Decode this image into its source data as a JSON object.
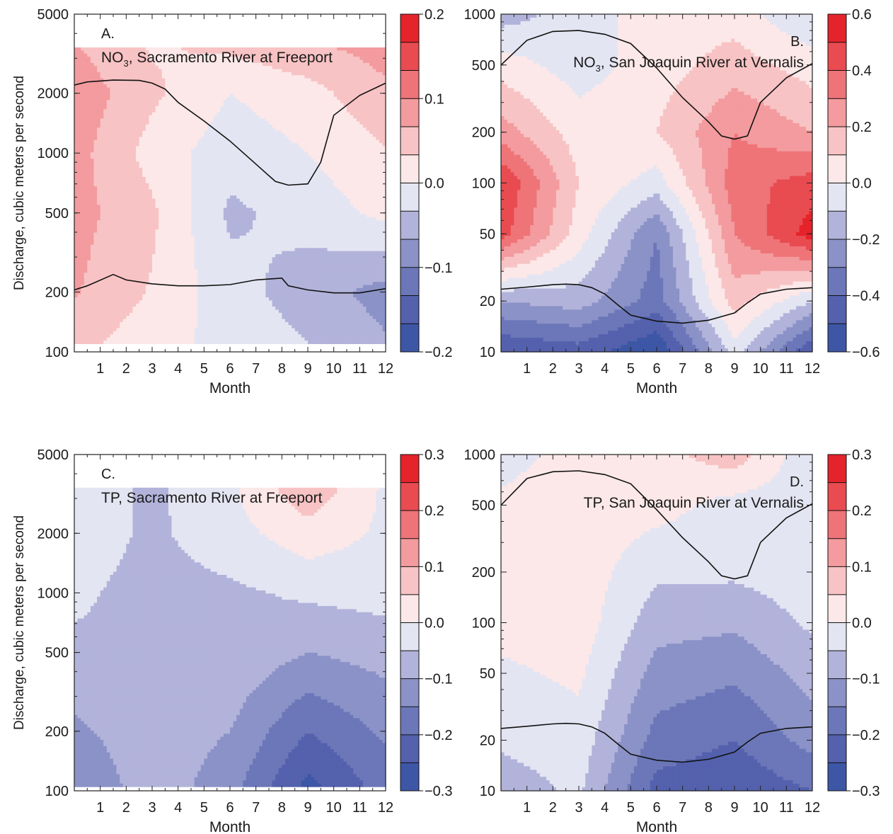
{
  "chart_data": [
    {
      "type": "heatmap",
      "panel_letter": "A.",
      "title_chem": "NO",
      "title_sub": "3",
      "title_rest": ", Sacramento River at Freeport",
      "xlabel": "Month",
      "ylabel": "Discharge, cubic meters per second",
      "y_scale": "log",
      "xlim": [
        0,
        12
      ],
      "ylim": [
        100,
        5000
      ],
      "x_ticks": [
        "1",
        "2",
        "3",
        "4",
        "5",
        "6",
        "7",
        "8",
        "9",
        "10",
        "11",
        "12"
      ],
      "y_ticks": [
        {
          "value": 100,
          "label": "100"
        },
        {
          "value": 200,
          "label": "200"
        },
        {
          "value": 500,
          "label": "500"
        },
        {
          "value": 1000,
          "label": "1000"
        },
        {
          "value": 2000,
          "label": "2000"
        },
        {
          "value": 5000,
          "label": "5000"
        }
      ],
      "colorbar": {
        "range": [
          -0.2,
          0.2
        ],
        "levels": 12,
        "labels": [
          {
            "value": 0.2,
            "label": "0.2"
          },
          {
            "value": 0.1,
            "label": "0.1"
          },
          {
            "value": 0.0,
            "label": "0.0"
          },
          {
            "value": -0.1,
            "label": "−0.1"
          },
          {
            "value": -0.2,
            "label": "−0.2"
          }
        ]
      },
      "data_extent": {
        "y_top": 3400,
        "y_bottom": 110
      },
      "control_points": {
        "x": [
          0,
          3,
          6,
          9,
          12
        ],
        "y": [
          100,
          200,
          500,
          1000,
          2000,
          3400
        ],
        "z": [
          [
            0.04,
            0.01,
            -0.01,
            -0.03,
            -0.06
          ],
          [
            0.07,
            0.03,
            -0.02,
            -0.05,
            -0.08
          ],
          [
            0.08,
            0.04,
            -0.04,
            -0.02,
            0.01
          ],
          [
            0.08,
            0.02,
            -0.02,
            0.0,
            0.03
          ],
          [
            0.09,
            0.04,
            0.0,
            0.02,
            0.06
          ],
          [
            0.07,
            0.03,
            0.04,
            0.06,
            0.08
          ]
        ]
      },
      "lines": [
        {
          "x": [
            0,
            0.5,
            1.5,
            2.5,
            3,
            3.5,
            4,
            5,
            6,
            7,
            7.75,
            8.25,
            9,
            9.5,
            10,
            11,
            12
          ],
          "y": [
            2200,
            2280,
            2330,
            2320,
            2250,
            2100,
            1800,
            1450,
            1150,
            880,
            720,
            690,
            700,
            900,
            1550,
            1950,
            2250
          ]
        },
        {
          "x": [
            0,
            0.5,
            1.5,
            2,
            3,
            4,
            5,
            6,
            7,
            8,
            8.25,
            9,
            10,
            11,
            12
          ],
          "y": [
            205,
            215,
            245,
            230,
            220,
            215,
            215,
            218,
            230,
            235,
            215,
            205,
            198,
            198,
            208
          ]
        }
      ]
    },
    {
      "type": "heatmap",
      "panel_letter": "B.",
      "title_chem": "NO",
      "title_sub": "3",
      "title_rest": ", San Joaquin River at Vernalis",
      "xlabel": "Month",
      "ylabel": "",
      "y_scale": "log",
      "xlim": [
        0,
        12
      ],
      "ylim": [
        10,
        1000
      ],
      "x_ticks": [
        "1",
        "2",
        "3",
        "4",
        "5",
        "6",
        "7",
        "8",
        "9",
        "10",
        "11",
        "12"
      ],
      "y_ticks": [
        {
          "value": 10,
          "label": "10"
        },
        {
          "value": 20,
          "label": "20"
        },
        {
          "value": 50,
          "label": "50"
        },
        {
          "value": 100,
          "label": "100"
        },
        {
          "value": 200,
          "label": "200"
        },
        {
          "value": 500,
          "label": "500"
        },
        {
          "value": 1000,
          "label": "1000"
        }
      ],
      "colorbar": {
        "range": [
          -0.6,
          0.6
        ],
        "levels": 12,
        "labels": [
          {
            "value": 0.6,
            "label": "0.6"
          },
          {
            "value": 0.4,
            "label": "0.4"
          },
          {
            "value": 0.2,
            "label": "0.2"
          },
          {
            "value": 0.0,
            "label": "0.0"
          },
          {
            "value": -0.2,
            "label": "−0.2"
          },
          {
            "value": -0.4,
            "label": "−0.4"
          },
          {
            "value": -0.6,
            "label": "−0.6"
          }
        ]
      },
      "data_extent": {
        "y_top": 1000,
        "y_bottom": 10
      },
      "control_points": {
        "x": [
          0,
          3,
          6,
          9,
          12
        ],
        "y": [
          10,
          20,
          50,
          100,
          200,
          500,
          1000
        ],
        "z": [
          [
            -0.5,
            -0.45,
            -0.6,
            -0.05,
            -0.5
          ],
          [
            -0.2,
            -0.15,
            -0.35,
            0.15,
            -0.1
          ],
          [
            0.45,
            0.05,
            -0.3,
            0.3,
            0.55
          ],
          [
            0.5,
            0.1,
            -0.05,
            0.35,
            0.45
          ],
          [
            0.25,
            0.05,
            0.1,
            0.3,
            0.2
          ],
          [
            0.05,
            -0.05,
            0.05,
            0.15,
            0.05
          ],
          [
            -0.15,
            -0.05,
            0.05,
            0.05,
            -0.1
          ]
        ]
      },
      "lines": [
        {
          "x": [
            0,
            1,
            2,
            3,
            4,
            5,
            6,
            7,
            8,
            8.5,
            9,
            9.5,
            10,
            11,
            12
          ],
          "y": [
            500,
            700,
            790,
            800,
            760,
            670,
            480,
            320,
            230,
            190,
            182,
            190,
            300,
            420,
            510
          ]
        },
        {
          "x": [
            0,
            1,
            2,
            2.5,
            3,
            3.5,
            4,
            4.5,
            5,
            6,
            7,
            8,
            9,
            9.5,
            10,
            11,
            12
          ],
          "y": [
            23.5,
            24.2,
            25,
            25.2,
            25,
            24,
            22,
            19,
            16.5,
            15.2,
            14.8,
            15.4,
            17,
            19.5,
            22,
            23.5,
            24
          ]
        }
      ]
    },
    {
      "type": "heatmap",
      "panel_letter": "C.",
      "title_chem": "",
      "title_sub": "",
      "title_rest": "TP, Sacramento River at Freeport",
      "xlabel": "Month",
      "ylabel": "Discharge, cubic meters per second",
      "y_scale": "log",
      "xlim": [
        0,
        12
      ],
      "ylim": [
        100,
        5000
      ],
      "x_ticks": [
        "1",
        "2",
        "3",
        "4",
        "5",
        "6",
        "7",
        "8",
        "9",
        "10",
        "11",
        "12"
      ],
      "y_ticks": [
        {
          "value": 100,
          "label": "100"
        },
        {
          "value": 200,
          "label": "200"
        },
        {
          "value": 500,
          "label": "500"
        },
        {
          "value": 1000,
          "label": "1000"
        },
        {
          "value": 2000,
          "label": "2000"
        },
        {
          "value": 5000,
          "label": "5000"
        }
      ],
      "colorbar": {
        "range": [
          -0.3,
          0.3
        ],
        "levels": 12,
        "labels": [
          {
            "value": 0.3,
            "label": "0.3"
          },
          {
            "value": 0.2,
            "label": "0.2"
          },
          {
            "value": 0.1,
            "label": "0.1"
          },
          {
            "value": 0.0,
            "label": "0.0"
          },
          {
            "value": -0.1,
            "label": "−0.1"
          },
          {
            "value": -0.2,
            "label": "−0.2"
          },
          {
            "value": -0.3,
            "label": "−0.3"
          }
        ]
      },
      "data_extent": {
        "y_top": 3400,
        "y_bottom": 105
      },
      "control_points": {
        "x": [
          0,
          3,
          6,
          9,
          12
        ],
        "y": [
          100,
          200,
          500,
          1000,
          2000,
          3400
        ],
        "z": [
          [
            -0.15,
            -0.07,
            -0.13,
            -0.27,
            -0.18
          ],
          [
            -0.11,
            -0.07,
            -0.1,
            -0.2,
            -0.14
          ],
          [
            -0.06,
            -0.06,
            -0.06,
            -0.1,
            -0.08
          ],
          [
            -0.04,
            -0.07,
            -0.06,
            -0.04,
            -0.03
          ],
          [
            -0.02,
            -0.06,
            -0.02,
            0.03,
            -0.01
          ],
          [
            -0.02,
            -0.06,
            -0.01,
            0.09,
            -0.01
          ]
        ]
      },
      "lines": []
    },
    {
      "type": "heatmap",
      "panel_letter": "D.",
      "title_chem": "",
      "title_sub": "",
      "title_rest": "TP, San Joaquin River at Vernalis",
      "xlabel": "Month",
      "ylabel": "",
      "y_scale": "log",
      "xlim": [
        0,
        12
      ],
      "ylim": [
        10,
        1000
      ],
      "x_ticks": [
        "1",
        "2",
        "3",
        "4",
        "5",
        "6",
        "7",
        "8",
        "9",
        "10",
        "11",
        "12"
      ],
      "y_ticks": [
        {
          "value": 10,
          "label": "10"
        },
        {
          "value": 20,
          "label": "20"
        },
        {
          "value": 50,
          "label": "50"
        },
        {
          "value": 100,
          "label": "100"
        },
        {
          "value": 200,
          "label": "200"
        },
        {
          "value": 500,
          "label": "500"
        },
        {
          "value": 1000,
          "label": "1000"
        }
      ],
      "colorbar": {
        "range": [
          -0.3,
          0.3
        ],
        "levels": 12,
        "labels": [
          {
            "value": 0.3,
            "label": "0.3"
          },
          {
            "value": 0.2,
            "label": "0.2"
          },
          {
            "value": 0.1,
            "label": "0.1"
          },
          {
            "value": 0.0,
            "label": "0.0"
          },
          {
            "value": -0.1,
            "label": "−0.1"
          },
          {
            "value": -0.2,
            "label": "−0.2"
          },
          {
            "value": -0.3,
            "label": "−0.3"
          }
        ]
      },
      "data_extent": {
        "y_top": 1000,
        "y_bottom": 10
      },
      "control_points": {
        "x": [
          0,
          3,
          6,
          9,
          12
        ],
        "y": [
          10,
          20,
          50,
          100,
          200,
          500,
          1000
        ],
        "z": [
          [
            -0.08,
            -0.04,
            -0.22,
            -0.24,
            -0.2
          ],
          [
            -0.04,
            -0.02,
            -0.17,
            -0.2,
            -0.13
          ],
          [
            -0.01,
            0.01,
            -0.12,
            -0.14,
            -0.08
          ],
          [
            0.02,
            0.03,
            -0.08,
            -0.09,
            -0.04
          ],
          [
            0.03,
            0.03,
            -0.04,
            -0.04,
            -0.02
          ],
          [
            0.01,
            0.03,
            0.02,
            -0.02,
            -0.03
          ],
          [
            -0.02,
            0.02,
            0.03,
            0.08,
            -0.04
          ]
        ]
      },
      "lines": [
        {
          "x": [
            0,
            1,
            2,
            3,
            4,
            5,
            6,
            7,
            8,
            8.5,
            9,
            9.5,
            10,
            11,
            12
          ],
          "y": [
            500,
            720,
            790,
            800,
            760,
            670,
            470,
            320,
            230,
            190,
            182,
            190,
            300,
            420,
            510
          ]
        },
        {
          "x": [
            0,
            1,
            2,
            2.5,
            3,
            3.5,
            4,
            4.5,
            5,
            6,
            7,
            8,
            9,
            9.5,
            10,
            11,
            12
          ],
          "y": [
            23.5,
            24.2,
            25,
            25.2,
            25,
            24,
            22,
            19,
            16.5,
            15.2,
            14.8,
            15.4,
            17,
            19.5,
            22,
            23.5,
            24
          ]
        }
      ]
    }
  ]
}
